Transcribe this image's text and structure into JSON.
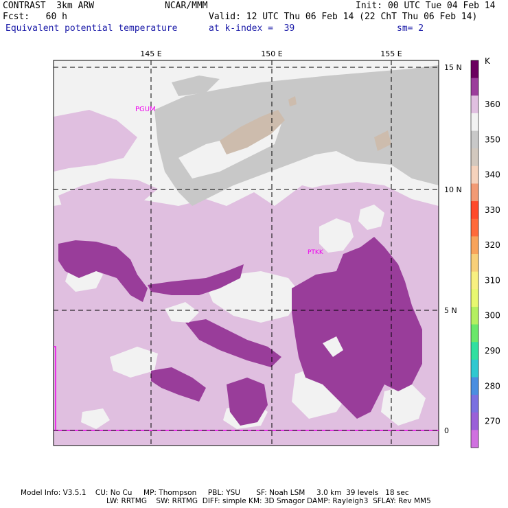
{
  "header": {
    "model": "CONTRAST  3km ARW",
    "center": "NCAR/MMM",
    "init": "Init: 00 UTC Tue 04 Feb 14",
    "fcst": "Fcst:   60 h",
    "valid": "Valid: 12 UTC Thu 06 Feb 14 (22 ChT Thu 06 Feb 14)",
    "field": "Equivalent potential temperature",
    "level": "at k-index =  39",
    "smooth": "sm= 2"
  },
  "map": {
    "lon_labels": [
      "145 E",
      "150 E",
      "155 E"
    ],
    "lat_labels": [
      "15 N",
      "10 N",
      "5 N",
      "0"
    ],
    "stations": [
      "PGUM",
      "PTKK"
    ]
  },
  "colorbar": {
    "unit": "K",
    "labels": [
      "360",
      "350",
      "340",
      "330",
      "320",
      "310",
      "300",
      "290",
      "280",
      "270"
    ],
    "colors": [
      "#6b005f",
      "#9b3d9b",
      "#e0bfe0",
      "#f2f2f2",
      "#c8c8c8",
      "#d2c8be",
      "#f5d2bc",
      "#f29a74",
      "#ff4a2a",
      "#ff6a3a",
      "#f8a35a",
      "#f8cf78",
      "#f8f080",
      "#e8f870",
      "#b4f060",
      "#6ae86a",
      "#30e0a0",
      "#30c8d0",
      "#4a8ee0",
      "#7a70e0",
      "#9a60d8",
      "#d070e0"
    ]
  },
  "footer": {
    "line1": "Model Info: V3.5.1    CU: No Cu     MP: Thompson     PBL: YSU       SF: Noah LSM     3.0 km  39 levels   18 sec",
    "line2": "LW: RRTMG    SW: RRTMG  DIFF: simple KM: 3D Smagor DAMP: Rayleigh3  SFLAY: Rev MM5"
  },
  "palette": {
    "p_dark": "#993d9a",
    "p_light": "#e0bfe0",
    "white": "#f2f2f2",
    "gray": "#c8c8c8",
    "tan": "#cdbcad",
    "label_magenta": "#ee00ee"
  }
}
